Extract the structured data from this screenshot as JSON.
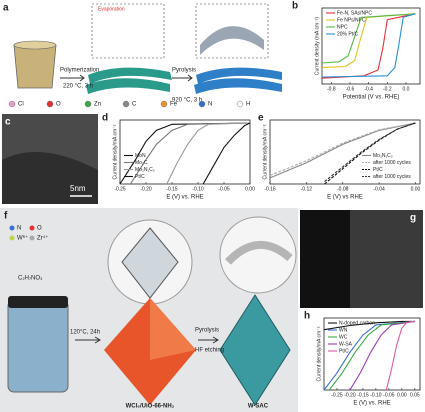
{
  "figure": {
    "a": {
      "letter": "a",
      "evaporation": "Evaporation",
      "step1": "Polymerization",
      "cond1": "220 °C, 3 h",
      "step2": "Pyrolysis",
      "cond2": "920 °C, 3 h",
      "legend": [
        "Cl",
        "O",
        "Zn",
        "C",
        "Fe",
        "N",
        "H"
      ]
    },
    "c": {
      "letter": "c",
      "scale": "5nm"
    },
    "f": {
      "letter": "f",
      "atoms": [
        "N",
        "O",
        "W⁶⁺",
        "Zr⁴⁺"
      ],
      "formula": "C₂H₇NO₃",
      "cond": "120°C, 24h",
      "step2": "Pyrolysis",
      "step3": "HF etching",
      "precursor": "WCl₆/UiO-66-NH₂",
      "product": "W-SAC"
    },
    "g": {
      "letter": "g"
    }
  },
  "chart_data": [
    {
      "letter": "b",
      "type": "line",
      "xlabel": "Potential (V vs. RHE)",
      "ylabel": "Current density (mA cm⁻²)",
      "legend": "upper left",
      "xlim": [
        -0.9,
        0.15
      ],
      "xticks": [
        -0.8,
        -0.6,
        -0.4,
        -0.2,
        {
          "value": 0,
          "label": "0.0"
        }
      ],
      "ylim": [
        -6,
        0.5
      ],
      "series": [
        {
          "name": "Fe-N, SAs/NPC",
          "color": "#e8303a",
          "x": [
            -0.9,
            -0.45,
            -0.3,
            -0.25,
            -0.2,
            0.1
          ],
          "values": [
            -5.5,
            -5.3,
            -4.8,
            -3,
            -0.5,
            0
          ]
        },
        {
          "name": "Fe NPs/NPC",
          "color": "#e6c21e",
          "x": [
            -0.9,
            -0.65,
            -0.55,
            -0.5,
            -0.42,
            0.1
          ],
          "values": [
            -4.6,
            -4.5,
            -4,
            -2.5,
            -0.3,
            0
          ]
        },
        {
          "name": "NPC",
          "color": "#5bb94a",
          "x": [
            -0.9,
            -0.72,
            -0.62,
            -0.56,
            -0.48,
            0.1
          ],
          "values": [
            -4.2,
            -4.1,
            -3.6,
            -2.2,
            -0.3,
            0
          ]
        },
        {
          "name": "20% Pt/C",
          "color": "#2a8fd8",
          "x": [
            -0.9,
            -0.2,
            -0.12,
            -0.08,
            -0.03,
            0.1
          ],
          "values": [
            -5.4,
            -5.3,
            -4.6,
            -2.8,
            -0.3,
            0
          ]
        }
      ]
    },
    {
      "letter": "d",
      "type": "line",
      "xlabel": "E (V) vs. RHE",
      "ylabel": "Current density/mA cm⁻²",
      "legend": "lower left",
      "xlim": [
        -0.25,
        0
      ],
      "xticks": [
        -0.25,
        {
          "value": -0.2,
          "label": "-0.20"
        },
        -0.15,
        {
          "value": -0.1,
          "label": "-0.10"
        },
        -0.05,
        {
          "value": 0,
          "label": "0.00"
        }
      ],
      "ylim": [
        -10,
        0.5
      ],
      "series": [
        {
          "name": "MoN",
          "color": "#111111",
          "x": [
            -0.25,
            -0.22,
            -0.2,
            -0.18,
            -0.15,
            0
          ],
          "values": [
            -10,
            -6,
            -3,
            -1.2,
            -0.2,
            0
          ]
        },
        {
          "name": "Mo₂C",
          "color": "#777777",
          "x": [
            -0.23,
            -0.2,
            -0.18,
            -0.15,
            -0.12,
            0
          ],
          "values": [
            -10,
            -6,
            -3.5,
            -1.2,
            -0.2,
            0
          ]
        },
        {
          "name": "Mo₂N₁C₂",
          "color": "#9a9a9a",
          "x": [
            -0.16,
            -0.14,
            -0.12,
            -0.1,
            -0.08,
            0
          ],
          "values": [
            -10,
            -6.5,
            -3.5,
            -1.2,
            -0.2,
            0
          ]
        },
        {
          "name": "Pt/C",
          "color": "#111111",
          "x": [
            -0.09,
            -0.07,
            -0.05,
            -0.03,
            -0.01,
            0
          ],
          "values": [
            -10,
            -7,
            -4,
            -2,
            -0.4,
            0
          ]
        }
      ]
    },
    {
      "letter": "e",
      "type": "line",
      "xlabel": "E (V) vs RHE",
      "ylabel": "Current density/mA cm⁻²",
      "legend": "lower right",
      "xlim": [
        -0.16,
        0.005
      ],
      "xticks": [
        -0.16,
        -0.12,
        -0.08,
        -0.04,
        {
          "value": 0,
          "label": "0.00"
        }
      ],
      "ylim": [
        -10,
        0.5
      ],
      "series": [
        {
          "name": "Mo₂N₁C₂",
          "color": "#888888",
          "x": [
            -0.16,
            -0.12,
            -0.08,
            -0.04,
            0
          ],
          "values": [
            -9,
            -6.5,
            -3.5,
            -1.2,
            0
          ]
        },
        {
          "name": "after 1000 cycles",
          "color": "#aaaaaa",
          "dashed": true,
          "x": [
            -0.16,
            -0.12,
            -0.08,
            -0.04,
            0
          ],
          "values": [
            -8.6,
            -6.2,
            -3.3,
            -1.1,
            0
          ]
        },
        {
          "name": "Pt/C",
          "color": "#111111",
          "dashed": true,
          "x": [
            -0.1,
            -0.08,
            -0.06,
            -0.04,
            -0.02,
            0
          ],
          "values": [
            -10,
            -7.5,
            -5,
            -2.8,
            -1,
            0
          ]
        },
        {
          "name": "after 1000 cycles",
          "color": "#333333",
          "dashed": true,
          "x": [
            -0.1,
            -0.08,
            -0.06,
            -0.04,
            -0.02,
            0
          ],
          "values": [
            -9.6,
            -7.2,
            -4.8,
            -2.7,
            -1,
            0
          ]
        }
      ]
    },
    {
      "letter": "h",
      "type": "line",
      "xlabel": "E (V) vs. RHE",
      "ylabel": "Current density/mA cm⁻²",
      "legend": "upper left",
      "xlim": [
        -0.3,
        0.07
      ],
      "xticks": [
        -0.25,
        {
          "value": -0.2,
          "label": "-0.20"
        },
        -0.15,
        {
          "value": -0.1,
          "label": "-0.10"
        },
        -0.05,
        {
          "value": 0,
          "label": "0.00"
        },
        0.05
      ],
      "ylim": [
        -10,
        0.5
      ],
      "series": [
        {
          "name": "N-doped carbon",
          "color": "#111111",
          "x": [
            -0.3,
            -0.2,
            -0.1,
            0,
            0.05
          ],
          "values": [
            -1.2,
            -0.6,
            -0.2,
            0,
            0
          ]
        },
        {
          "name": "WN",
          "color": "#3a6fd0",
          "x": [
            -0.3,
            -0.25,
            -0.2,
            -0.15,
            -0.1,
            0.05
          ],
          "values": [
            -10,
            -7.5,
            -4.5,
            -2,
            -0.5,
            0
          ]
        },
        {
          "name": "WC",
          "color": "#3aa845",
          "x": [
            -0.28,
            -0.23,
            -0.18,
            -0.13,
            -0.08,
            0.05
          ],
          "values": [
            -10,
            -7.5,
            -4.5,
            -2,
            -0.5,
            0
          ]
        },
        {
          "name": "W-SA",
          "color": "#9b3fb5",
          "x": [
            -0.2,
            -0.16,
            -0.12,
            -0.08,
            -0.04,
            0.05
          ],
          "values": [
            -10,
            -7.5,
            -4.5,
            -2,
            -0.5,
            0
          ]
        },
        {
          "name": "Pt/C",
          "color": "#e05aa0",
          "x": [
            -0.06,
            -0.04,
            -0.02,
            0,
            0.02,
            0.05
          ],
          "values": [
            -10,
            -7,
            -3.5,
            -1,
            -0.1,
            0
          ]
        }
      ]
    }
  ]
}
